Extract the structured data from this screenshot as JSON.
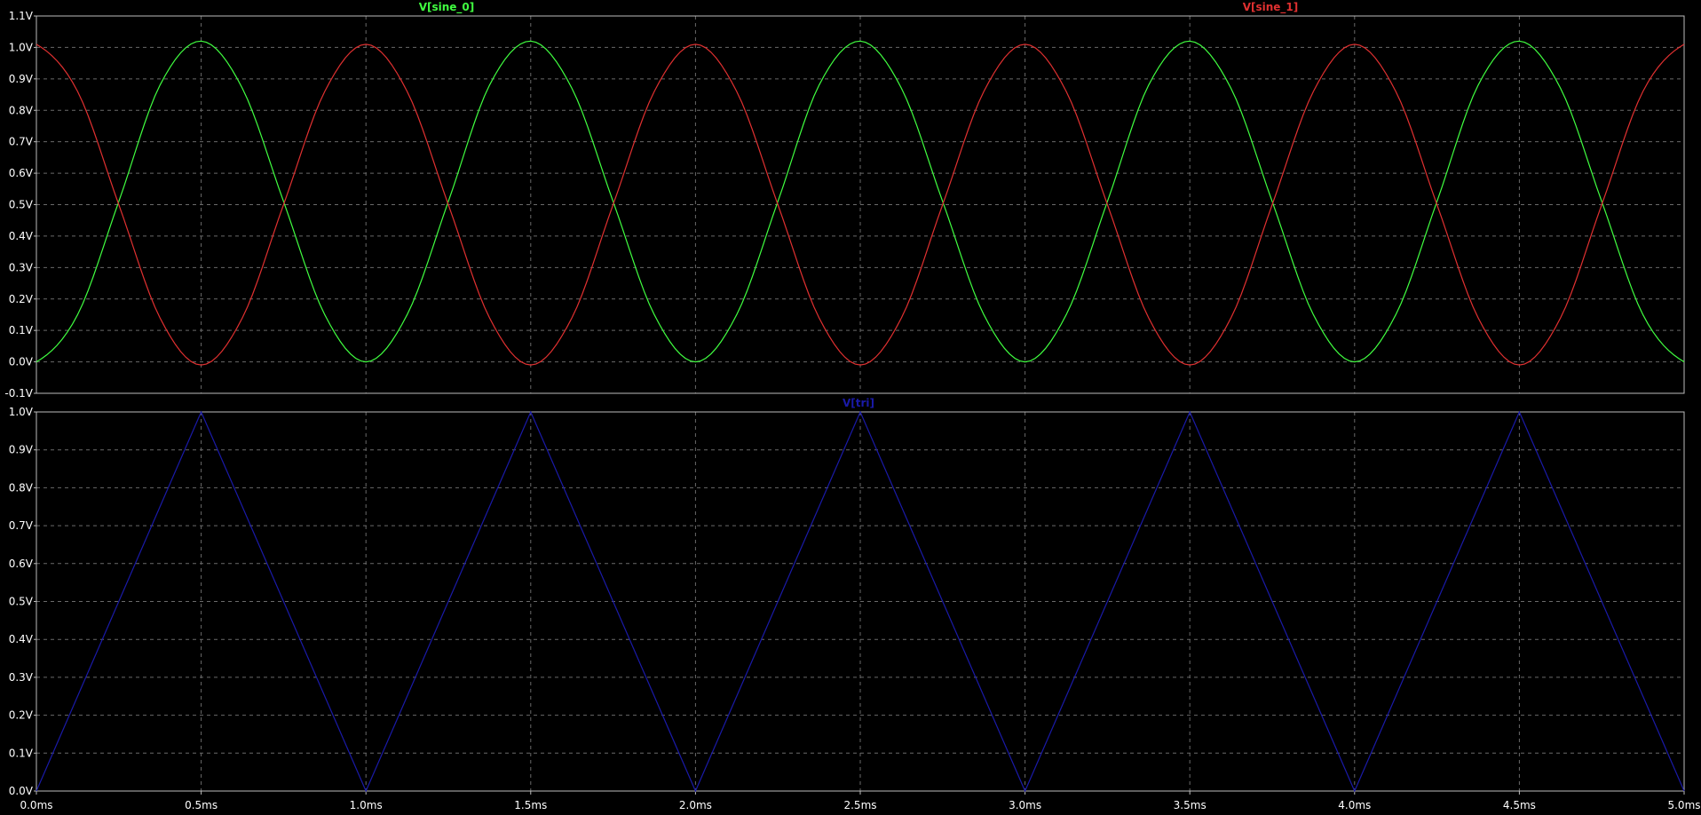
{
  "chart_data": [
    {
      "type": "line",
      "xlabel": "",
      "ylabel": "",
      "xlim": [
        0,
        5
      ],
      "ylim": [
        -0.1,
        1.1
      ],
      "x_ticks": [
        "0.0ms",
        "0.5ms",
        "1.0ms",
        "1.5ms",
        "2.0ms",
        "2.5ms",
        "3.0ms",
        "3.5ms",
        "4.0ms",
        "4.5ms",
        "5.0ms"
      ],
      "y_ticks": [
        "1.1V",
        "1.0V",
        "0.9V",
        "0.8V",
        "0.7V",
        "0.6V",
        "0.5V",
        "0.4V",
        "0.3V",
        "0.2V",
        "0.1V",
        "0.0V",
        "-0.1V"
      ],
      "grid": true,
      "legend_position": "top",
      "series": [
        {
          "name": "V[sine_0]",
          "color": "#40ff40",
          "x": [
            0,
            0.125,
            0.25,
            0.375,
            0.5,
            0.625,
            0.75,
            0.875,
            1.0,
            1.125,
            1.25,
            1.375,
            1.5,
            1.625,
            1.75,
            1.875,
            2.0,
            2.125,
            2.25,
            2.375,
            2.5,
            2.625,
            2.75,
            2.875,
            3.0,
            3.125,
            3.25,
            3.375,
            3.5,
            3.625,
            3.75,
            3.875,
            4.0,
            4.125,
            4.25,
            4.375,
            4.5,
            4.625,
            4.75,
            4.875,
            5.0
          ],
          "values": [
            0.0,
            0.15,
            0.51,
            0.88,
            1.02,
            0.87,
            0.51,
            0.15,
            0.0,
            0.15,
            0.51,
            0.88,
            1.02,
            0.87,
            0.51,
            0.15,
            0.0,
            0.15,
            0.51,
            0.88,
            1.02,
            0.87,
            0.51,
            0.15,
            0.0,
            0.15,
            0.51,
            0.88,
            1.02,
            0.87,
            0.51,
            0.15,
            0.0,
            0.15,
            0.51,
            0.88,
            1.02,
            0.87,
            0.51,
            0.15,
            0.0
          ]
        },
        {
          "name": "V[sine_1]",
          "color": "#e03030",
          "x": [
            0,
            0.125,
            0.25,
            0.375,
            0.5,
            0.625,
            0.75,
            0.875,
            1.0,
            1.125,
            1.25,
            1.375,
            1.5,
            1.625,
            1.75,
            1.875,
            2.0,
            2.125,
            2.25,
            2.375,
            2.5,
            2.625,
            2.75,
            2.875,
            3.0,
            3.125,
            3.25,
            3.375,
            3.5,
            3.625,
            3.75,
            3.875,
            4.0,
            4.125,
            4.25,
            4.375,
            4.5,
            4.625,
            4.75,
            4.875,
            5.0
          ],
          "values": [
            1.01,
            0.86,
            0.5,
            0.14,
            -0.01,
            0.14,
            0.5,
            0.86,
            1.01,
            0.86,
            0.5,
            0.14,
            -0.01,
            0.14,
            0.5,
            0.86,
            1.01,
            0.86,
            0.5,
            0.14,
            -0.01,
            0.14,
            0.5,
            0.86,
            1.01,
            0.86,
            0.5,
            0.14,
            -0.01,
            0.14,
            0.5,
            0.86,
            1.01,
            0.86,
            0.5,
            0.14,
            -0.01,
            0.14,
            0.5,
            0.86,
            1.01
          ]
        }
      ]
    },
    {
      "type": "line",
      "xlabel": "",
      "ylabel": "",
      "xlim": [
        0,
        5
      ],
      "ylim": [
        0,
        1.0
      ],
      "x_ticks": [
        "0.0ms",
        "0.5ms",
        "1.0ms",
        "1.5ms",
        "2.0ms",
        "2.5ms",
        "3.0ms",
        "3.5ms",
        "4.0ms",
        "4.5ms",
        "5.0ms"
      ],
      "y_ticks": [
        "1.0V",
        "0.9V",
        "0.8V",
        "0.7V",
        "0.6V",
        "0.5V",
        "0.4V",
        "0.3V",
        "0.2V",
        "0.1V",
        "0.0V"
      ],
      "grid": true,
      "legend_position": "top",
      "series": [
        {
          "name": "V[tri]",
          "color": "#1a1aa8",
          "x": [
            0,
            0.5,
            1.0,
            1.5,
            2.0,
            2.5,
            3.0,
            3.5,
            4.0,
            4.5,
            5.0
          ],
          "values": [
            0,
            1,
            0,
            1,
            0,
            1,
            0,
            1,
            0,
            1,
            0
          ]
        }
      ]
    }
  ]
}
